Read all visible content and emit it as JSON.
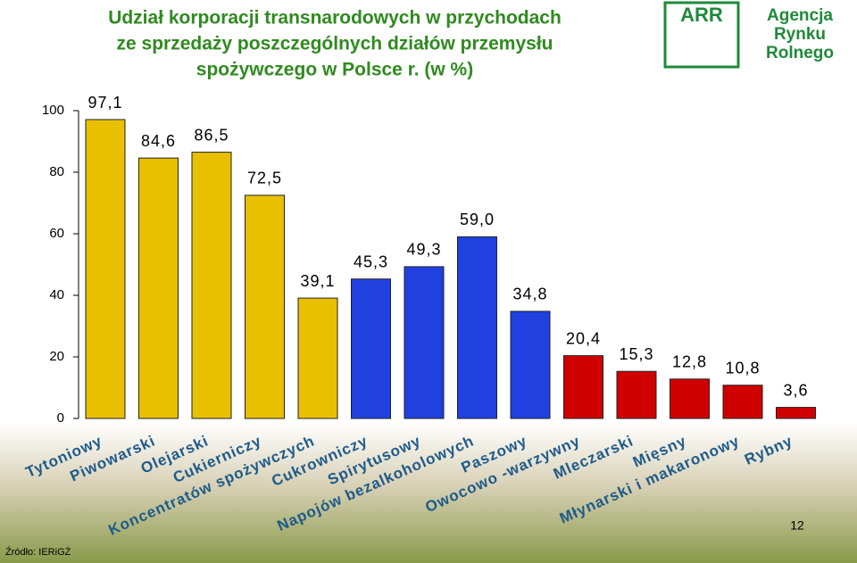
{
  "chart_data": {
    "type": "bar",
    "title_lines": [
      "Udział korporacji transnarodowych w przychodach",
      "ze sprzedaży poszczególnych działów przemysłu",
      "spożywczego w Polsce r. (w %)"
    ],
    "categories": [
      "Tytoniowy",
      "Piwowarski",
      "Olejarski",
      "Cukierniczy",
      "Koncentratów spożywczych",
      "Cukrowniczy",
      "Spirytusowy",
      "Napojów bezalkoholowych",
      "Paszowy",
      "Owocowo -warzywny",
      "Mleczarski",
      "Mięsny",
      "Młynarski i makaronowy",
      "Rybny"
    ],
    "values": [
      97.1,
      84.6,
      86.5,
      72.5,
      39.1,
      45.3,
      49.3,
      59.0,
      34.8,
      20.4,
      15.3,
      12.8,
      10.8,
      3.6
    ],
    "value_labels": [
      "97,1",
      "84,6",
      "86,5",
      "72,5",
      "39,1",
      "45,3",
      "49,3",
      "59,0",
      "34,8",
      "20,4",
      "15,3",
      "12,8",
      "10,8",
      "3,6"
    ],
    "colors": [
      "#e8c000",
      "#e8c000",
      "#e8c000",
      "#e8c000",
      "#e8c000",
      "#2040e0",
      "#2040e0",
      "#2040e0",
      "#2040e0",
      "#d00000",
      "#d00000",
      "#d00000",
      "#d00000",
      "#d00000"
    ],
    "ylim": [
      0,
      100
    ],
    "yticks": [
      0,
      20,
      40,
      60,
      80,
      100
    ]
  },
  "logo": {
    "mark": "ARR",
    "lines": [
      "Agencja",
      "Rynku",
      "Rolnego"
    ]
  },
  "source": "Źródło: IERiGŻ",
  "page_number": "12"
}
